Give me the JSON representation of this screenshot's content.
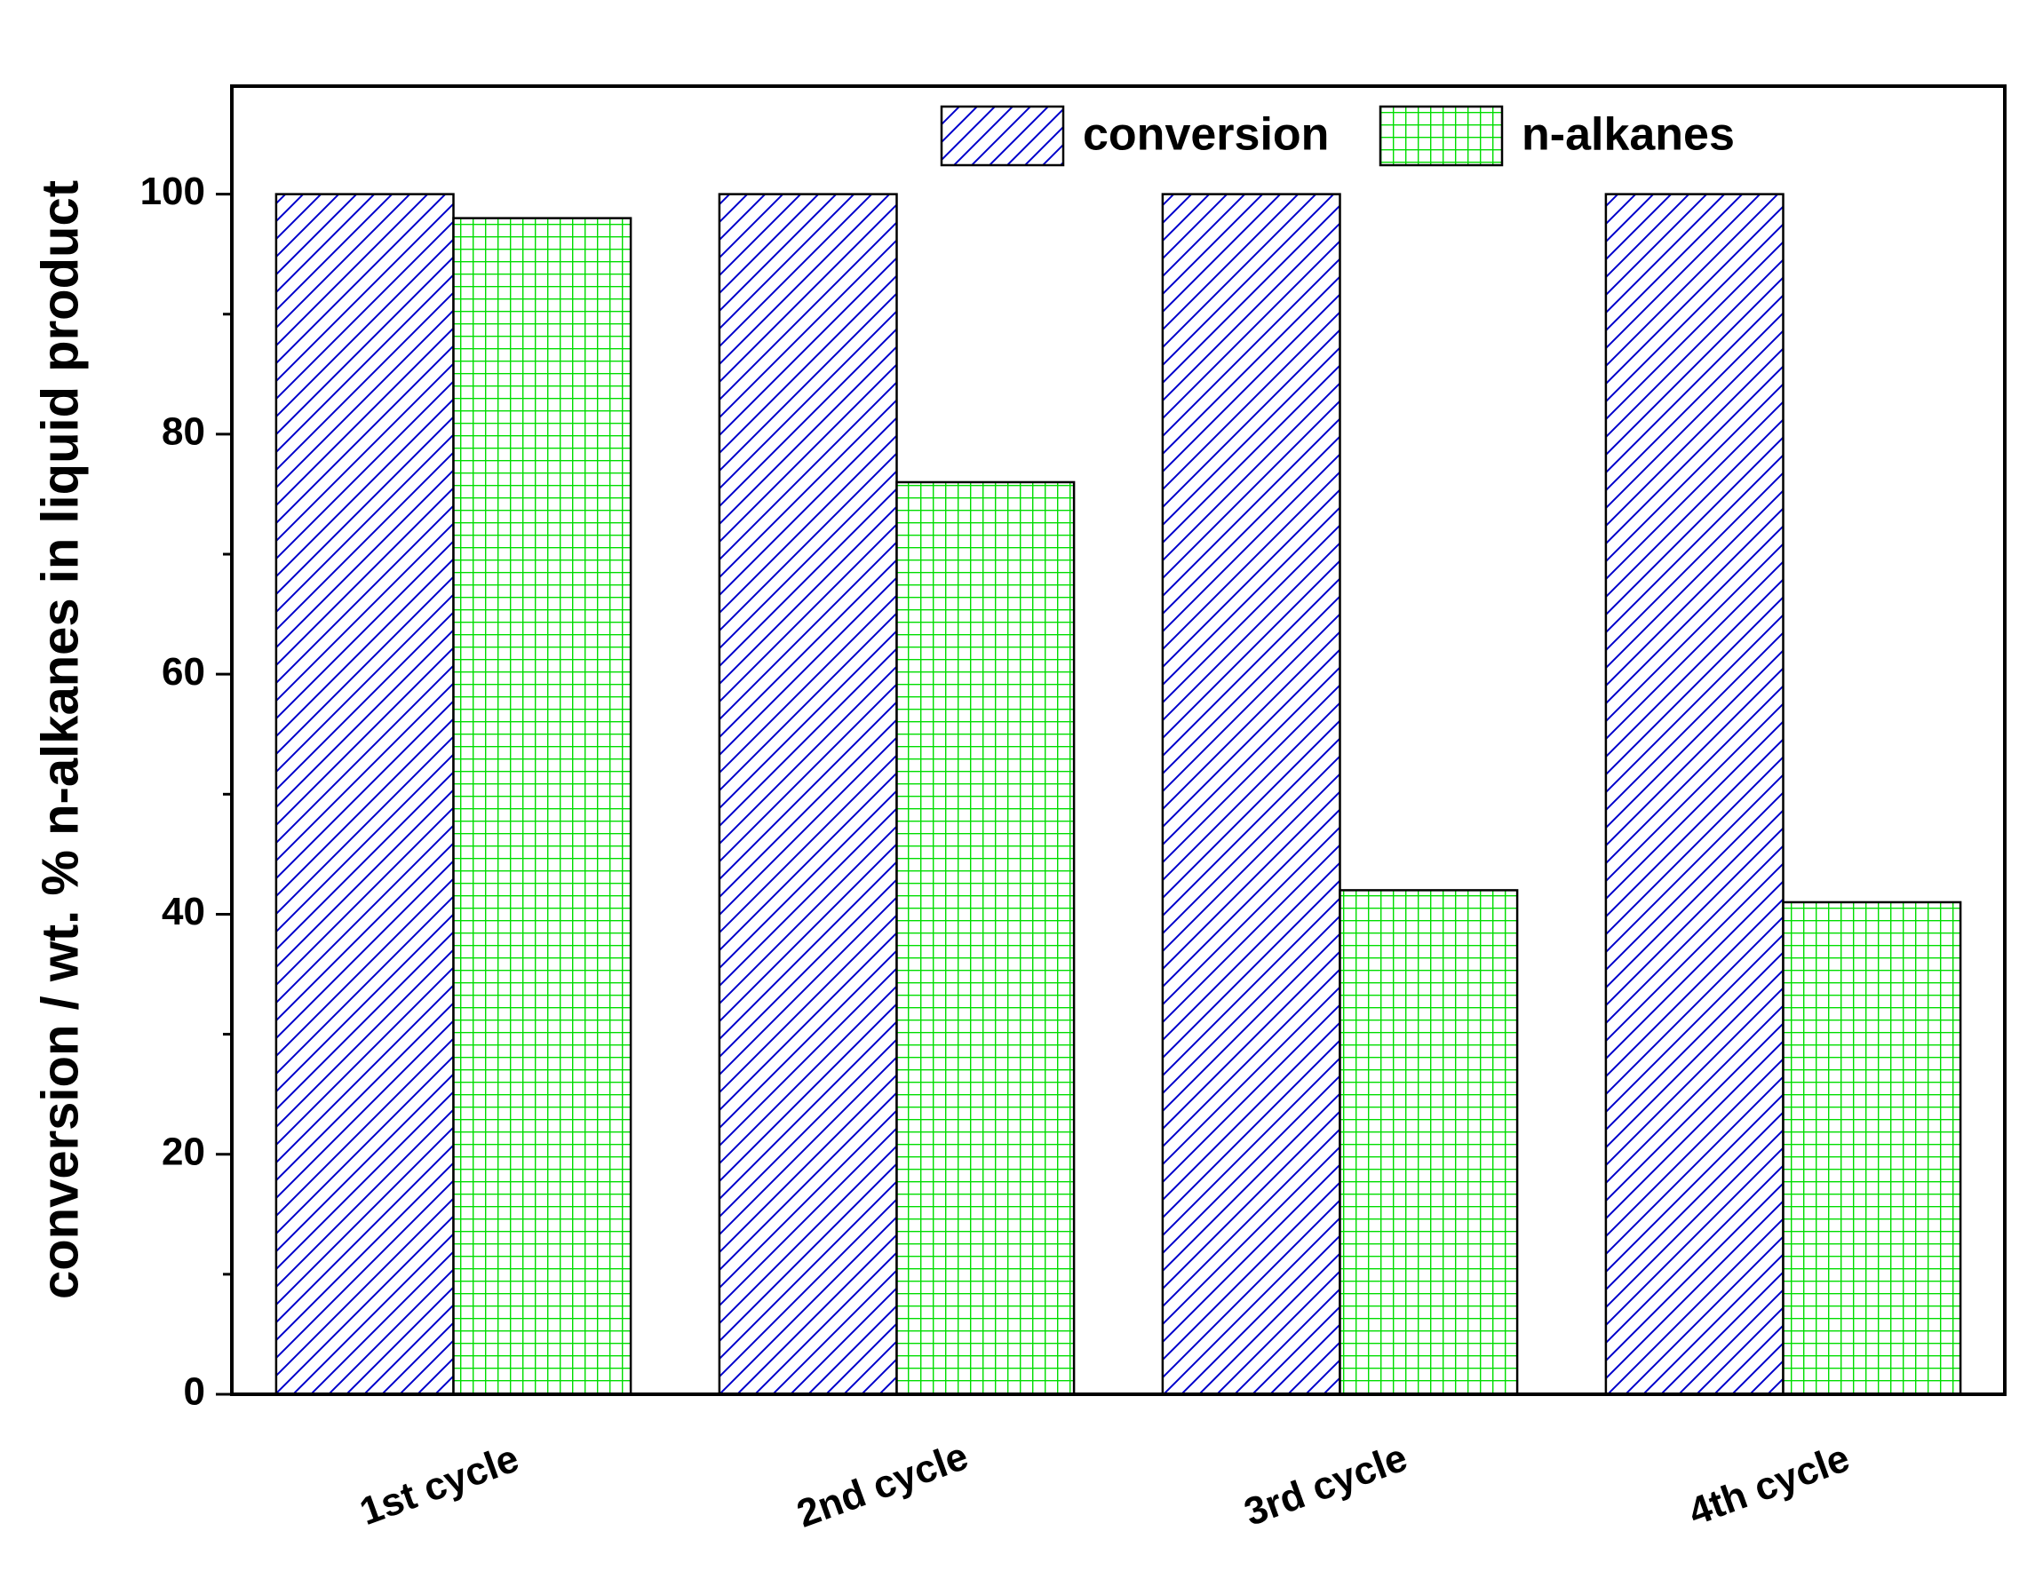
{
  "chart_data": {
    "type": "bar",
    "y_label": "conversion / wt. % n-alkanes in liquid product",
    "categories": [
      "1st cycle",
      "2nd cycle",
      "3rd cycle",
      "4th cycle"
    ],
    "series": [
      {
        "name": "conversion",
        "color": "#0000cc",
        "pattern": "hatch",
        "values": [
          100,
          100,
          100,
          100
        ]
      },
      {
        "name": "n-alkanes",
        "color": "#00dd00",
        "pattern": "grid",
        "values": [
          98,
          76,
          42,
          41
        ]
      }
    ],
    "ylim": [
      0,
      109
    ],
    "yticks": [
      0,
      20,
      40,
      60,
      80,
      100
    ],
    "minor_yticks": [
      10,
      30,
      50,
      70,
      90
    ],
    "legend": "top-right"
  }
}
